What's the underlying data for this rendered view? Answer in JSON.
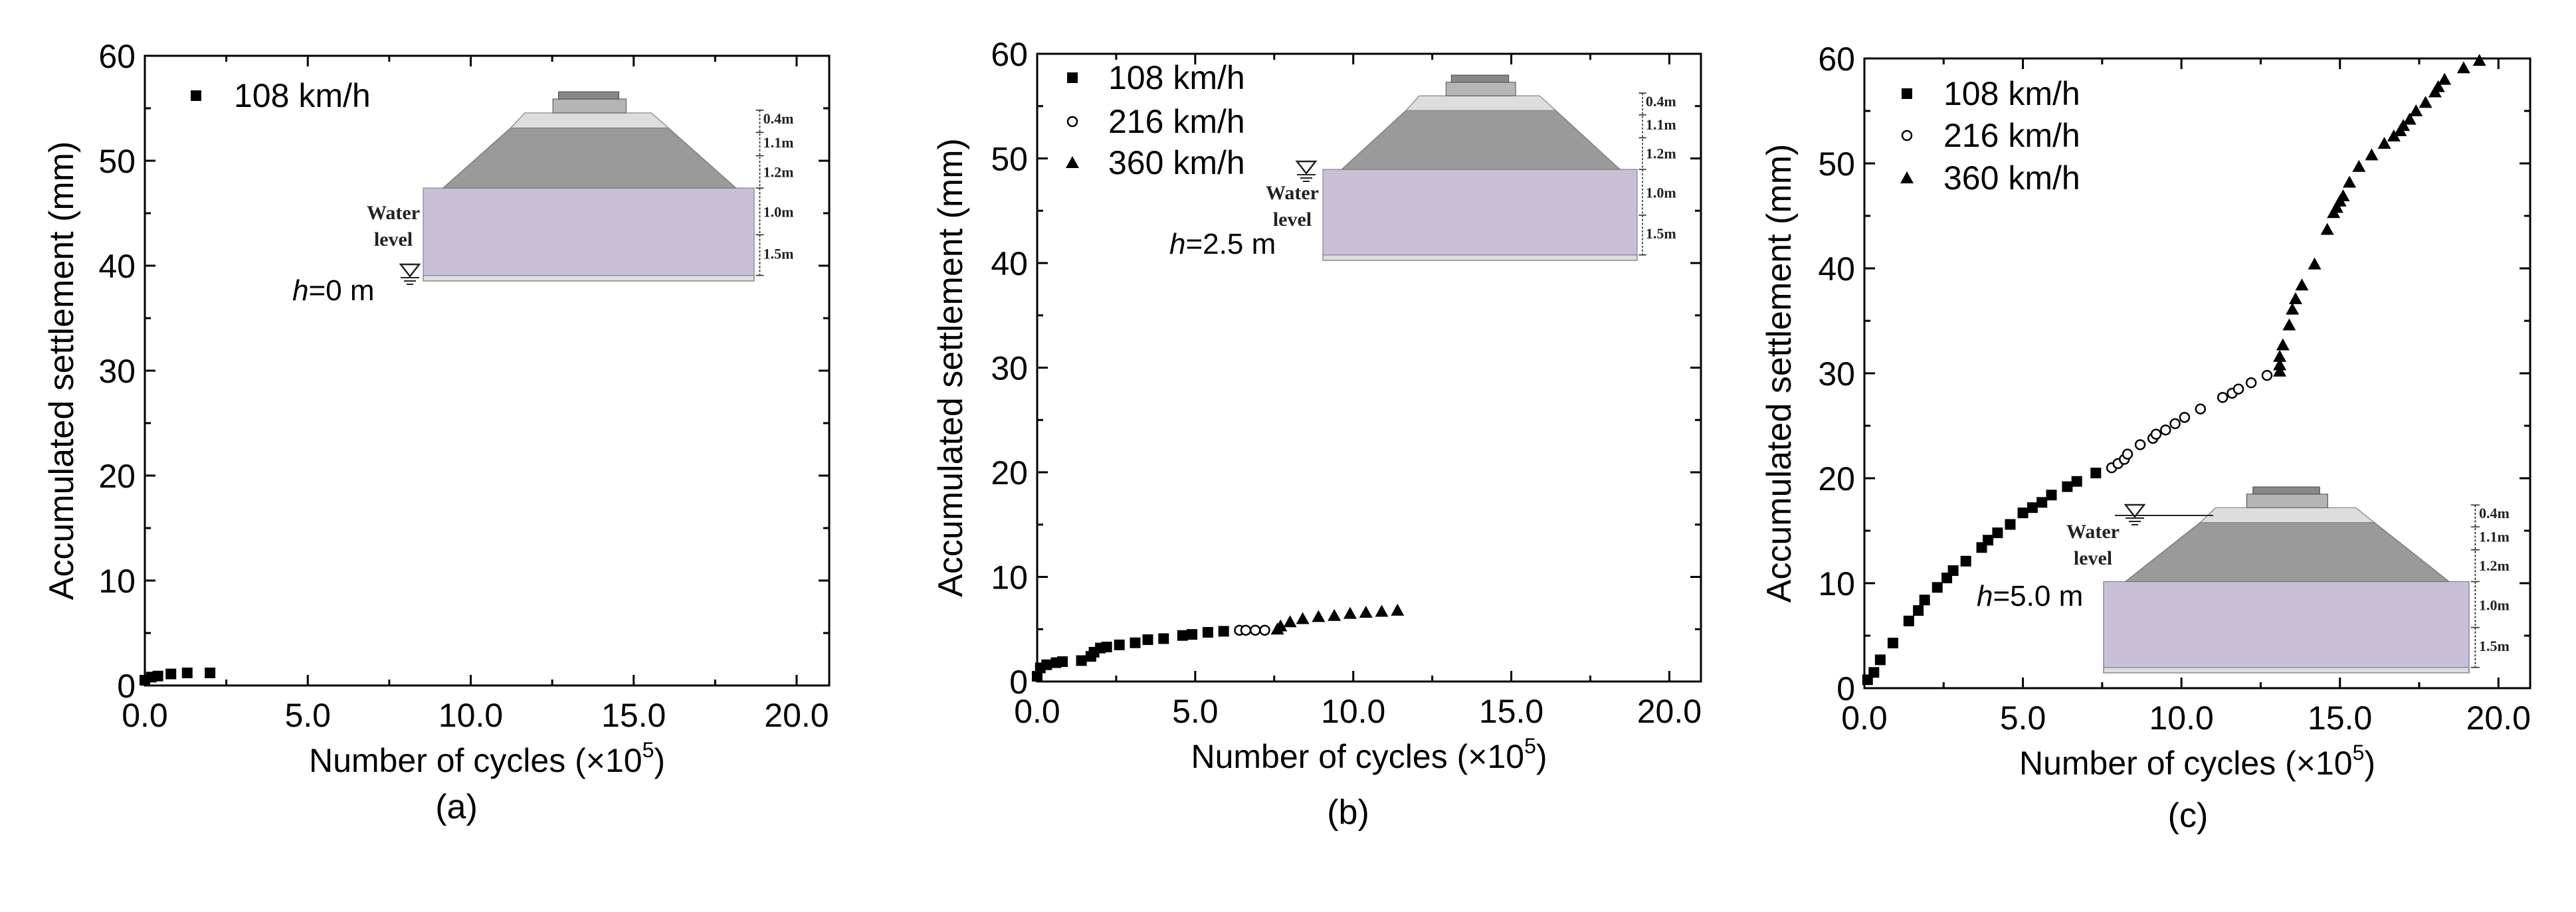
{
  "chart_data": [
    {
      "type": "scatter",
      "caption": "(a)",
      "xlabel": {
        "main": "Number of cycles (×10",
        "sup": "5",
        "end": ")"
      },
      "ylabel": "Accumulated settlement (mm)",
      "xlim": [
        0,
        21
      ],
      "ylim": [
        0,
        60
      ],
      "xticks": [
        "0.0",
        "5.0",
        "10.0",
        "15.0",
        "20.0"
      ],
      "yticks": [
        "0",
        "10",
        "20",
        "30",
        "40",
        "50",
        "60"
      ],
      "legend_position": "top-left",
      "series": [
        {
          "name": "108 km/h",
          "marker": "square-filled",
          "x": [
            0.0,
            0.2,
            0.4,
            0.8,
            1.3,
            2.0
          ],
          "y": [
            0.5,
            0.8,
            0.9,
            1.1,
            1.2,
            1.2
          ]
        }
      ],
      "inset": {
        "water_text": [
          "Water",
          "level"
        ],
        "depth": "h=0 m",
        "depth_var": "h",
        "depth_rest": "=0 m",
        "layers": [
          "0.4m",
          "1.1m",
          "1.2m",
          "1.0m",
          "1.5m"
        ]
      }
    },
    {
      "type": "scatter",
      "caption": "(b)",
      "xlabel": {
        "main": "Number of cycles (×10",
        "sup": "5",
        "end": ")"
      },
      "ylabel": "Accumulated settlement (mm)",
      "xlim": [
        0,
        21
      ],
      "ylim": [
        0,
        60
      ],
      "xticks": [
        "0.0",
        "5.0",
        "10.0",
        "15.0",
        "20.0"
      ],
      "yticks": [
        "0",
        "10",
        "20",
        "30",
        "40",
        "50",
        "60"
      ],
      "legend_position": "top-left",
      "series": [
        {
          "name": "108 km/h",
          "marker": "square-filled",
          "x": [
            0.0,
            0.1,
            0.3,
            0.6,
            0.8,
            1.4,
            1.7,
            1.8,
            2.0,
            2.2,
            2.6,
            3.1,
            3.5,
            4.0,
            4.6,
            4.9,
            5.4,
            5.9
          ],
          "y": [
            0.5,
            1.3,
            1.6,
            1.8,
            1.9,
            2.0,
            2.4,
            2.8,
            3.2,
            3.3,
            3.5,
            3.7,
            4.0,
            4.1,
            4.4,
            4.5,
            4.7,
            4.8
          ]
        },
        {
          "name": "216 km/h",
          "marker": "circle-open",
          "x": [
            6.4,
            6.6,
            6.9,
            7.2
          ],
          "y": [
            4.9,
            4.9,
            4.9,
            4.9
          ]
        },
        {
          "name": "360 km/h",
          "marker": "triangle-filled",
          "x": [
            7.6,
            7.7,
            8.0,
            8.4,
            8.9,
            9.4,
            9.9,
            10.4,
            10.9,
            11.4
          ],
          "y": [
            5.0,
            5.3,
            5.7,
            6.0,
            6.2,
            6.3,
            6.5,
            6.6,
            6.7,
            6.8
          ]
        }
      ],
      "inset": {
        "water_text": [
          "Water",
          "level"
        ],
        "depth": "h=2.5 m",
        "depth_var": "h",
        "depth_rest": "=2.5 m",
        "layers": [
          "0.4m",
          "1.1m",
          "1.2m",
          "1.0m",
          "1.5m"
        ]
      }
    },
    {
      "type": "scatter",
      "caption": "(c)",
      "xlabel": {
        "main": "Number of cycles (×10",
        "sup": "5",
        "end": ")"
      },
      "ylabel": "Accumulated settlement (mm)",
      "xlim": [
        0,
        21
      ],
      "ylim": [
        0,
        60
      ],
      "xticks": [
        "0.0",
        "5.0",
        "10.0",
        "15.0",
        "20.0"
      ],
      "yticks": [
        "0",
        "10",
        "20",
        "30",
        "40",
        "50",
        "60"
      ],
      "legend_position": "top-left",
      "series": [
        {
          "name": "108 km/h",
          "marker": "square-filled",
          "x": [
            0.1,
            0.3,
            0.5,
            0.9,
            1.4,
            1.7,
            1.9,
            2.3,
            2.6,
            2.8,
            3.2,
            3.7,
            3.9,
            4.2,
            4.6,
            5.0,
            5.3,
            5.6,
            5.9,
            6.4,
            6.7,
            7.3
          ],
          "y": [
            0.8,
            1.5,
            2.7,
            4.3,
            6.4,
            7.4,
            8.4,
            9.6,
            10.5,
            11.2,
            12.1,
            13.4,
            14.1,
            14.8,
            15.6,
            16.7,
            17.2,
            17.7,
            18.4,
            19.2,
            19.7,
            20.5
          ]
        },
        {
          "name": "216 km/h",
          "marker": "circle-open",
          "x": [
            7.8,
            8.0,
            8.2,
            8.3,
            8.7,
            9.1,
            9.2,
            9.5,
            9.8,
            10.1,
            10.6,
            11.3,
            11.6,
            11.8,
            12.2,
            12.7
          ],
          "y": [
            21.0,
            21.4,
            21.8,
            22.3,
            23.2,
            23.8,
            24.2,
            24.6,
            25.2,
            25.8,
            26.6,
            27.7,
            28.1,
            28.5,
            29.1,
            29.8
          ]
        },
        {
          "name": "360 km/h",
          "marker": "triangle-filled",
          "x": [
            13.1,
            13.1,
            13.1,
            13.2,
            13.4,
            13.5,
            13.6,
            13.8,
            14.2,
            14.6,
            14.8,
            14.9,
            15.0,
            15.1,
            15.3,
            15.6,
            16.0,
            16.4,
            16.7,
            16.9,
            17.0,
            17.2,
            17.4,
            17.7,
            18.0,
            18.1,
            18.3,
            18.9,
            19.4
          ],
          "y": [
            30.2,
            30.8,
            31.6,
            32.7,
            34.6,
            36.1,
            37.1,
            38.4,
            40.4,
            43.7,
            45.3,
            45.8,
            46.4,
            46.9,
            48.2,
            49.7,
            50.8,
            51.9,
            52.6,
            53.1,
            53.6,
            54.2,
            55.0,
            55.8,
            56.8,
            57.3,
            58.0,
            59.1,
            59.8
          ]
        }
      ],
      "inset": {
        "water_text": [
          "Water",
          "level"
        ],
        "depth": "h=5.0 m",
        "depth_var": "h",
        "depth_rest": "=5.0 m",
        "layers": [
          "0.4m",
          "1.1m",
          "1.2m",
          "1.0m",
          "1.5m"
        ]
      }
    }
  ],
  "colors": {
    "marker": "#000000",
    "soil_layer": "#c9c0d8",
    "embankment": "#9a9a9a",
    "surface_layer": "#dddddd"
  }
}
